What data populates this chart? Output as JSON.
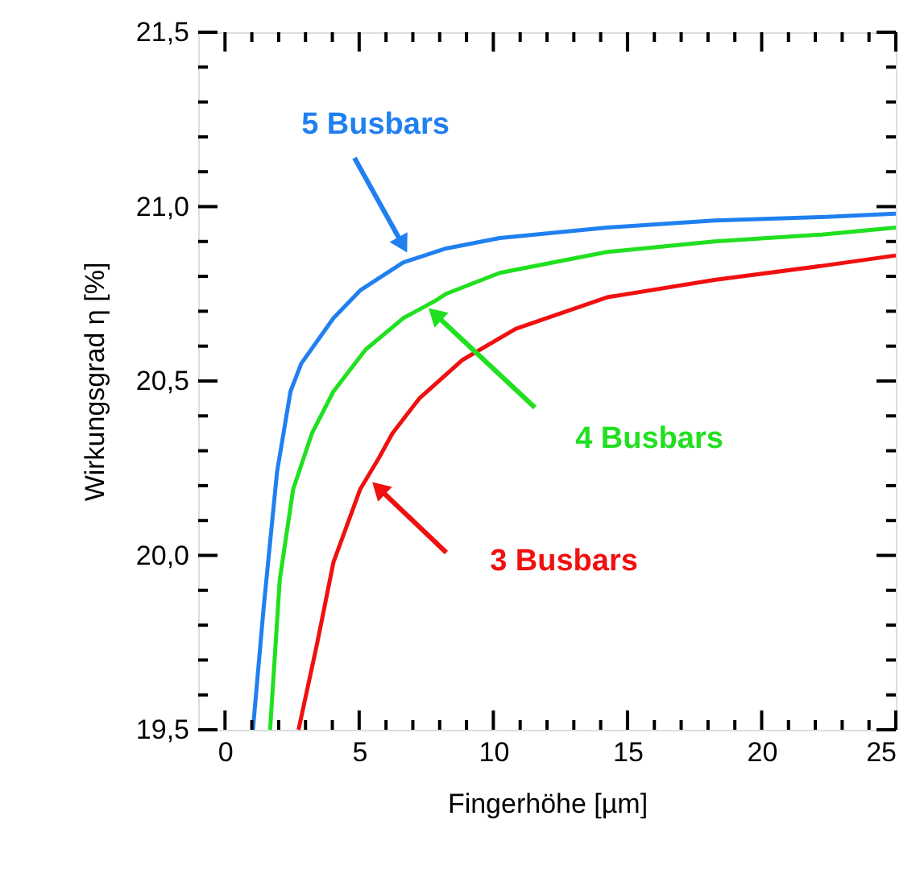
{
  "chart_data": {
    "type": "line",
    "xlabel": "Fingerhöhe [µm]",
    "ylabel": "Wirkungsgrad η [%]",
    "xlim": [
      -1,
      25
    ],
    "ylim": [
      19.5,
      21.5
    ],
    "xticks": [
      0,
      {
        "value": 1,
        "label": null
      },
      {
        "value": 2,
        "label": null
      },
      {
        "value": 3,
        "label": null
      },
      {
        "value": 4,
        "label": null
      },
      5,
      {
        "value": 6,
        "label": null
      },
      {
        "value": 7,
        "label": null
      },
      {
        "value": 8,
        "label": null
      },
      {
        "value": 9,
        "label": null
      },
      10,
      {
        "value": 11,
        "label": null
      },
      {
        "value": 12,
        "label": null
      },
      {
        "value": 13,
        "label": null
      },
      {
        "value": 14,
        "label": null
      },
      15,
      {
        "value": 16,
        "label": null
      },
      {
        "value": 17,
        "label": null
      },
      {
        "value": 18,
        "label": null
      },
      {
        "value": 19,
        "label": null
      },
      20,
      {
        "value": 21,
        "label": null
      },
      {
        "value": 22,
        "label": null
      },
      {
        "value": 23,
        "label": null
      },
      {
        "value": 24,
        "label": null
      },
      25
    ],
    "yticks": [
      {
        "value": 19.5,
        "label": "19,5"
      },
      {
        "value": 19.6,
        "label": null
      },
      {
        "value": 19.7,
        "label": null
      },
      {
        "value": 19.8,
        "label": null
      },
      {
        "value": 19.9,
        "label": null
      },
      {
        "value": 20.0,
        "label": "20,0"
      },
      {
        "value": 20.1,
        "label": null
      },
      {
        "value": 20.2,
        "label": null
      },
      {
        "value": 20.3,
        "label": null
      },
      {
        "value": 20.4,
        "label": null
      },
      {
        "value": 20.5,
        "label": "20,5"
      },
      {
        "value": 20.6,
        "label": null
      },
      {
        "value": 20.7,
        "label": null
      },
      {
        "value": 20.8,
        "label": null
      },
      {
        "value": 20.9,
        "label": null
      },
      {
        "value": 21.0,
        "label": "21,0"
      },
      {
        "value": 21.1,
        "label": null
      },
      {
        "value": 21.2,
        "label": null
      },
      {
        "value": 21.3,
        "label": null
      },
      {
        "value": 21.4,
        "label": null
      },
      {
        "value": 21.5,
        "label": "21,5"
      }
    ],
    "grid": false,
    "legend": false,
    "marker": "none",
    "line_style": "solid",
    "series": [
      {
        "name": "5 Busbars",
        "color": "#2080f0",
        "x": [
          1.04,
          1.44,
          1.94,
          2.44,
          2.84,
          4.04,
          5.04,
          6.64,
          8.24,
          10.24,
          14.24,
          18.24,
          22.24,
          25
        ],
        "values": [
          19.5,
          19.85,
          20.24,
          20.47,
          20.55,
          20.68,
          20.76,
          20.84,
          20.88,
          20.91,
          20.94,
          20.96,
          20.97,
          20.98
        ]
      },
      {
        "name": "4 Busbars",
        "color": "#20e020",
        "x": [
          1.68,
          2.04,
          2.54,
          3.24,
          4.04,
          5.24,
          6.64,
          7.84,
          8.24,
          10.24,
          14.24,
          18.24,
          22.24,
          25
        ],
        "values": [
          19.5,
          19.93,
          20.19,
          20.35,
          20.47,
          20.59,
          20.68,
          20.73,
          20.75,
          20.81,
          20.87,
          20.9,
          20.92,
          20.94
        ]
      },
      {
        "name": "3 Busbars",
        "color": "#f01010",
        "x": [
          2.74,
          3.44,
          4.04,
          5.04,
          5.74,
          6.24,
          7.24,
          8.84,
          10.84,
          14.24,
          18.24,
          22.24,
          25
        ],
        "values": [
          19.5,
          19.75,
          19.98,
          20.19,
          20.28,
          20.35,
          20.45,
          20.56,
          20.65,
          20.74,
          20.79,
          20.83,
          20.86
        ]
      }
    ]
  }
}
